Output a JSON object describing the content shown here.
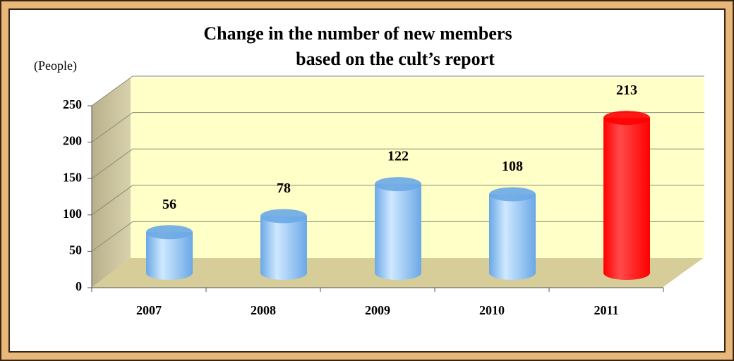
{
  "chart_data": {
    "type": "bar3d",
    "title": [
      "Change in the number of new members",
      "based on the cult’s report"
    ],
    "y_label": "(People)",
    "categories": [
      "2007",
      "2008",
      "2009",
      "2010",
      "2011"
    ],
    "values": [
      56,
      78,
      122,
      108,
      213
    ],
    "colors": [
      "#6aa8e6",
      "#6aa8e6",
      "#6aa8e6",
      "#6aa8e6",
      "#ff0000"
    ],
    "ylim": [
      0,
      250
    ],
    "yticks": [
      0,
      50,
      100,
      150,
      200,
      250
    ],
    "grid": true
  }
}
